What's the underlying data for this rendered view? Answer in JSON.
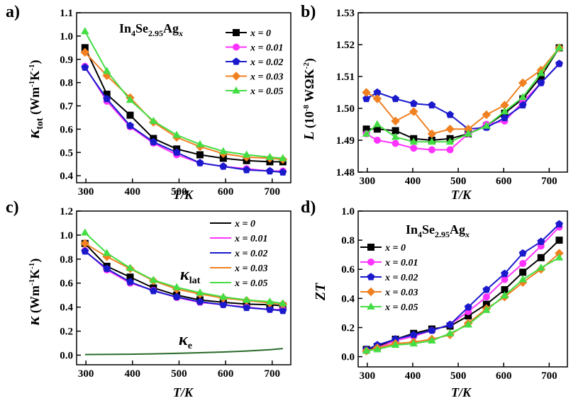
{
  "formula": {
    "main": "In",
    "s1": "4",
    "mid": "Se",
    "s2": "2.95",
    "end": "Ag",
    "s3": "x"
  },
  "legend_labels": [
    "x = 0",
    "x = 0.01",
    "x = 0.02",
    "x = 0.03",
    "x = 0.05"
  ],
  "series_colors": [
    "#000000",
    "#ff33ff",
    "#1a1acc",
    "#f08020",
    "#44dd44"
  ],
  "chart_data": [
    {
      "id": "a",
      "type": "line",
      "panel_label": "a)",
      "xlabel": "T/K",
      "ylabel": {
        "main": "κ",
        "sub": "tot",
        "unit": " (Wm",
        "e1": "-1",
        "unit2": "K",
        "e2": "-1",
        "close": ")"
      },
      "xlim": [
        280,
        740
      ],
      "ylim": [
        0.37,
        1.1
      ],
      "xticks": [
        "300",
        "400",
        "500",
        "600",
        "700"
      ],
      "yticks": [
        "0.4",
        "0.5",
        "0.6",
        "0.7",
        "0.8",
        "0.9",
        "1.0",
        "1.1"
      ],
      "x": [
        298,
        345,
        395,
        445,
        495,
        545,
        595,
        645,
        695,
        723
      ],
      "series": [
        {
          "name": "x = 0",
          "values": [
            0.95,
            0.75,
            0.66,
            0.56,
            0.515,
            0.49,
            0.475,
            0.465,
            0.46,
            0.46
          ]
        },
        {
          "name": "x = 0.01",
          "values": [
            0.87,
            0.72,
            0.61,
            0.54,
            0.49,
            0.455,
            0.44,
            0.43,
            0.42,
            0.42
          ]
        },
        {
          "name": "x = 0.02",
          "values": [
            0.865,
            0.73,
            0.615,
            0.545,
            0.5,
            0.455,
            0.44,
            0.425,
            0.42,
            0.415
          ]
        },
        {
          "name": "x = 0.03",
          "values": [
            0.93,
            0.83,
            0.735,
            0.63,
            0.565,
            0.525,
            0.495,
            0.48,
            0.475,
            0.47
          ]
        },
        {
          "name": "x = 0.05",
          "values": [
            1.02,
            0.85,
            0.725,
            0.635,
            0.575,
            0.535,
            0.505,
            0.49,
            0.48,
            0.475
          ]
        }
      ]
    },
    {
      "id": "b",
      "type": "line",
      "panel_label": "b)",
      "xlabel": "T/K",
      "ylabel": {
        "main": "L",
        "unit": " (10",
        "e1": "-8",
        "unit2": " WΩK",
        "e2": "-2",
        "close": ")"
      },
      "xlim": [
        280,
        740
      ],
      "ylim": [
        1.48,
        1.53
      ],
      "xticks": [
        "300",
        "400",
        "500",
        "600",
        "700"
      ],
      "yticks": [
        "1.48",
        "1.49",
        "1.50",
        "1.51",
        "1.52",
        "1.53"
      ],
      "series": [
        {
          "name": "x = 0",
          "x": [
            298,
            322,
            362,
            402,
            442,
            482,
            522,
            562,
            602,
            642,
            682,
            722
          ],
          "values": [
            1.4935,
            1.4935,
            1.493,
            1.4905,
            1.49,
            1.4905,
            1.492,
            1.4945,
            1.4985,
            1.503,
            1.51,
            1.519
          ]
        },
        {
          "name": "x = 0.01",
          "x": [
            298,
            322,
            362,
            402,
            442,
            482,
            522,
            562,
            602,
            642,
            682,
            722
          ],
          "values": [
            1.492,
            1.49,
            1.489,
            1.4875,
            1.487,
            1.487,
            1.492,
            1.495,
            1.496,
            1.502,
            1.508,
            1.514
          ]
        },
        {
          "name": "x = 0.02",
          "x": [
            298,
            322,
            362,
            402,
            442,
            482,
            522,
            562,
            602,
            642,
            682,
            722
          ],
          "values": [
            1.503,
            1.505,
            1.503,
            1.5015,
            1.501,
            1.498,
            1.4935,
            1.494,
            1.497,
            1.501,
            1.508,
            1.514
          ]
        },
        {
          "name": "x = 0.03",
          "x": [
            298,
            322,
            362,
            402,
            442,
            482,
            522,
            562,
            602,
            642,
            682,
            722
          ],
          "values": [
            1.505,
            1.503,
            1.496,
            1.499,
            1.492,
            1.4935,
            1.4935,
            1.498,
            1.501,
            1.508,
            1.512,
            1.519
          ]
        },
        {
          "name": "x = 0.05",
          "x": [
            298,
            322,
            362,
            402,
            442,
            482,
            522,
            562,
            602,
            642,
            682,
            722
          ],
          "values": [
            1.492,
            1.495,
            1.491,
            1.4895,
            1.4895,
            1.4895,
            1.492,
            1.4945,
            1.499,
            1.5035,
            1.511,
            1.519
          ]
        }
      ]
    },
    {
      "id": "c",
      "type": "line",
      "panel_label": "c)",
      "xlabel": "T/K",
      "ylabel": {
        "main": "κ",
        "unit": " (Wm",
        "e1": "-1",
        "unit2": "K",
        "e2": "-1",
        "close": ")"
      },
      "xlim": [
        280,
        740
      ],
      "ylim": [
        -0.08,
        1.2
      ],
      "xticks": [
        "300",
        "400",
        "500",
        "600",
        "700"
      ],
      "yticks": [
        "0.0",
        "0.2",
        "0.4",
        "0.6",
        "0.8",
        "1.0",
        "1.2"
      ],
      "x": [
        298,
        345,
        395,
        445,
        495,
        545,
        595,
        645,
        695,
        723
      ],
      "series": [
        {
          "name": "x = 0",
          "values": [
            0.93,
            0.74,
            0.65,
            0.56,
            0.5,
            0.46,
            0.44,
            0.425,
            0.42,
            0.41
          ]
        },
        {
          "name": "x = 0.01",
          "values": [
            0.87,
            0.71,
            0.6,
            0.54,
            0.48,
            0.44,
            0.42,
            0.4,
            0.38,
            0.38
          ]
        },
        {
          "name": "x = 0.02",
          "values": [
            0.865,
            0.72,
            0.61,
            0.535,
            0.485,
            0.445,
            0.42,
            0.395,
            0.38,
            0.37
          ]
        },
        {
          "name": "x = 0.03",
          "values": [
            0.93,
            0.82,
            0.72,
            0.62,
            0.55,
            0.51,
            0.475,
            0.455,
            0.435,
            0.425
          ]
        },
        {
          "name": "x = 0.05",
          "values": [
            1.02,
            0.85,
            0.725,
            0.625,
            0.565,
            0.52,
            0.485,
            0.46,
            0.445,
            0.43
          ]
        }
      ],
      "electronic": {
        "x": [
          298,
          345,
          395,
          445,
          495,
          545,
          595,
          645,
          695,
          723
        ],
        "values": [
          0.005,
          0.006,
          0.008,
          0.011,
          0.015,
          0.02,
          0.026,
          0.034,
          0.045,
          0.055
        ]
      },
      "annotations": {
        "lat": {
          "main": "κ",
          "sub": "lat"
        },
        "e": {
          "main": "κ",
          "sub": "e"
        }
      }
    },
    {
      "id": "d",
      "type": "line",
      "panel_label": "d)",
      "xlabel": "T/K",
      "ylabel": {
        "main": "ZT"
      },
      "xlim": [
        280,
        740
      ],
      "ylim": [
        -0.07,
        1.0
      ],
      "xticks": [
        "300",
        "400",
        "500",
        "600",
        "700"
      ],
      "yticks": [
        "0.0",
        "0.2",
        "0.4",
        "0.6",
        "0.8",
        "1.0"
      ],
      "x": [
        298,
        322,
        362,
        402,
        442,
        482,
        522,
        562,
        602,
        642,
        682,
        722
      ],
      "series": [
        {
          "name": "x = 0",
          "values": [
            0.05,
            0.07,
            0.12,
            0.16,
            0.19,
            0.21,
            0.28,
            0.36,
            0.46,
            0.58,
            0.68,
            0.8
          ]
        },
        {
          "name": "x = 0.01",
          "values": [
            0.04,
            0.06,
            0.11,
            0.14,
            0.18,
            0.22,
            0.31,
            0.41,
            0.53,
            0.64,
            0.76,
            0.89
          ]
        },
        {
          "name": "x = 0.02",
          "values": [
            0.05,
            0.08,
            0.12,
            0.15,
            0.18,
            0.22,
            0.34,
            0.46,
            0.57,
            0.71,
            0.79,
            0.91
          ]
        },
        {
          "name": "x = 0.03",
          "values": [
            0.04,
            0.06,
            0.09,
            0.1,
            0.12,
            0.15,
            0.23,
            0.33,
            0.41,
            0.51,
            0.6,
            0.71
          ]
        },
        {
          "name": "x = 0.05",
          "values": [
            0.04,
            0.05,
            0.08,
            0.09,
            0.11,
            0.16,
            0.22,
            0.32,
            0.42,
            0.53,
            0.61,
            0.68
          ]
        }
      ]
    }
  ]
}
